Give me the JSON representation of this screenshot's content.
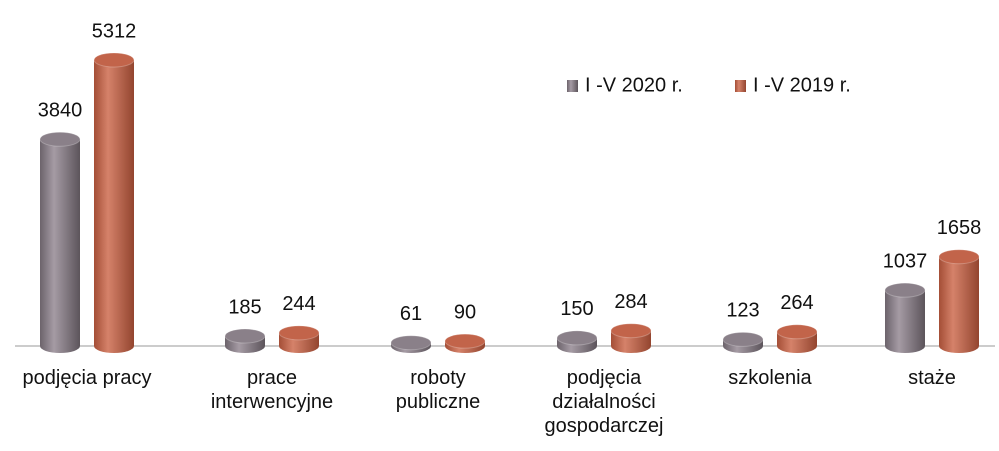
{
  "chart_data": {
    "type": "bar",
    "categories": [
      "podjęcia pracy",
      "prace\ninterwencyjne",
      "roboty\npubliczne",
      "podjęcia\ndziałalności\ngospodarczej",
      "szkolenia",
      "staże"
    ],
    "series": [
      {
        "name": "I -V 2020 r.",
        "color": "#8a8089",
        "values": [
          3840,
          185,
          61,
          150,
          123,
          1037
        ]
      },
      {
        "name": "I -V 2019 r.",
        "color": "#c2644a",
        "values": [
          5312,
          244,
          90,
          284,
          264,
          1658
        ]
      }
    ],
    "legend": "top-right"
  }
}
